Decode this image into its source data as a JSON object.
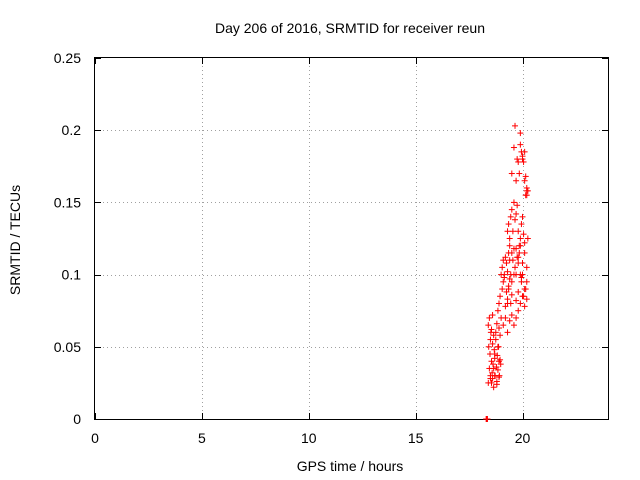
{
  "chart_data": {
    "type": "scatter",
    "title": "Day 206 of 2016, SRMTID for receiver reun",
    "xlabel": "GPS time / hours",
    "ylabel": "SRMTID / TECUs",
    "xlim": [
      0,
      24
    ],
    "ylim": [
      0,
      0.25
    ],
    "xticks": [
      0,
      5,
      10,
      15,
      20
    ],
    "xtick_labels": [
      "0",
      "5",
      "10",
      "15",
      "20"
    ],
    "yticks": [
      0,
      0.05,
      0.1,
      0.15,
      0.2,
      0.25
    ],
    "ytick_labels": [
      "0",
      "0.05",
      "0.1",
      "0.15",
      "0.2",
      "0.25"
    ],
    "grid": true,
    "marker": "plus",
    "series": [
      {
        "name": "reun",
        "color": "#ff0000",
        "x": [
          18.3,
          18.32,
          18.34,
          18.36,
          18.4,
          18.42,
          18.45,
          18.48,
          18.5,
          18.52,
          18.55,
          18.58,
          18.6,
          18.62,
          18.65,
          18.68,
          18.7,
          18.72,
          18.75,
          18.78,
          18.8,
          18.82,
          18.85,
          18.88,
          18.9,
          18.92,
          18.95,
          18.98,
          18.4,
          18.45,
          18.5,
          18.55,
          18.6,
          18.65,
          18.7,
          18.75,
          18.8,
          18.85,
          18.9,
          18.95,
          18.5,
          18.55,
          18.6,
          18.65,
          18.7,
          18.8,
          18.9,
          18.85,
          18.9,
          18.95,
          19.0,
          19.05,
          19.1,
          19.15,
          19.2,
          19.25,
          19.3,
          19.35,
          19.4,
          19.45,
          19.5,
          19.0,
          19.05,
          19.1,
          19.15,
          19.2,
          19.25,
          19.3,
          19.35,
          19.4,
          19.45,
          19.5,
          19.55,
          19.6,
          19.65,
          19.7,
          19.75,
          19.8,
          19.85,
          19.9,
          19.95,
          19.1,
          19.2,
          19.3,
          19.4,
          19.5,
          19.6,
          19.7,
          19.8,
          19.9,
          20.0,
          20.1,
          20.2,
          19.3,
          19.35,
          19.4,
          19.45,
          19.5,
          19.55,
          19.6,
          19.65,
          19.7,
          19.75,
          19.8,
          19.85,
          19.9,
          19.95,
          20.0,
          20.05,
          20.1,
          20.15,
          20.2,
          20.25,
          19.5,
          19.6,
          19.7,
          19.8,
          19.9,
          20.0,
          20.1,
          20.2,
          20.25,
          19.65,
          19.75,
          19.85,
          19.9,
          19.95,
          20.0,
          20.05,
          20.1,
          20.15,
          20.2,
          19.3,
          19.35,
          19.7,
          19.8,
          19.95,
          20.0,
          20.05,
          20.1,
          20.15,
          20.2,
          19.4,
          19.5,
          19.6,
          19.7,
          19.8,
          19.9,
          20.0,
          20.1,
          20.2
        ],
        "y": [
          0,
          0,
          0,
          0,
          0.025,
          0.05,
          0.035,
          0.045,
          0.028,
          0.06,
          0.04,
          0.032,
          0.052,
          0.038,
          0.022,
          0.048,
          0.042,
          0.03,
          0.055,
          0.036,
          0.026,
          0.044,
          0.034,
          0.05,
          0.04,
          0.03,
          0.058,
          0.038,
          0.065,
          0.07,
          0.055,
          0.062,
          0.072,
          0.058,
          0.045,
          0.06,
          0.066,
          0.05,
          0.063,
          0.041,
          0.03,
          0.025,
          0.028,
          0.035,
          0.03,
          0.024,
          0.029,
          0.075,
          0.08,
          0.085,
          0.07,
          0.09,
          0.095,
          0.1,
          0.078,
          0.088,
          0.083,
          0.092,
          0.097,
          0.08,
          0.086,
          0.1,
          0.105,
          0.11,
          0.098,
          0.112,
          0.108,
          0.102,
          0.115,
          0.12,
          0.1,
          0.095,
          0.11,
          0.118,
          0.105,
          0.1,
          0.112,
          0.108,
          0.115,
          0.1,
          0.098,
          0.065,
          0.07,
          0.06,
          0.068,
          0.072,
          0.065,
          0.07,
          0.075,
          0.08,
          0.085,
          0.09,
          0.095,
          0.13,
          0.135,
          0.125,
          0.14,
          0.145,
          0.13,
          0.15,
          0.138,
          0.142,
          0.148,
          0.13,
          0.12,
          0.125,
          0.135,
          0.14,
          0.128,
          0.122,
          0.155,
          0.16,
          0.125,
          0.17,
          0.188,
          0.165,
          0.178,
          0.19,
          0.18,
          0.185,
          0.155,
          0.158,
          0.203,
          0.18,
          0.17,
          0.198,
          0.185,
          0.182,
          0.178,
          0.165,
          0.168,
          0.158,
          0.08,
          0.09,
          0.082,
          0.088,
          0.095,
          0.1,
          0.085,
          0.078,
          0.09,
          0.083,
          0.11,
          0.115,
          0.1,
          0.118,
          0.112,
          0.12,
          0.108,
          0.115,
          0.105
        ]
      }
    ]
  }
}
